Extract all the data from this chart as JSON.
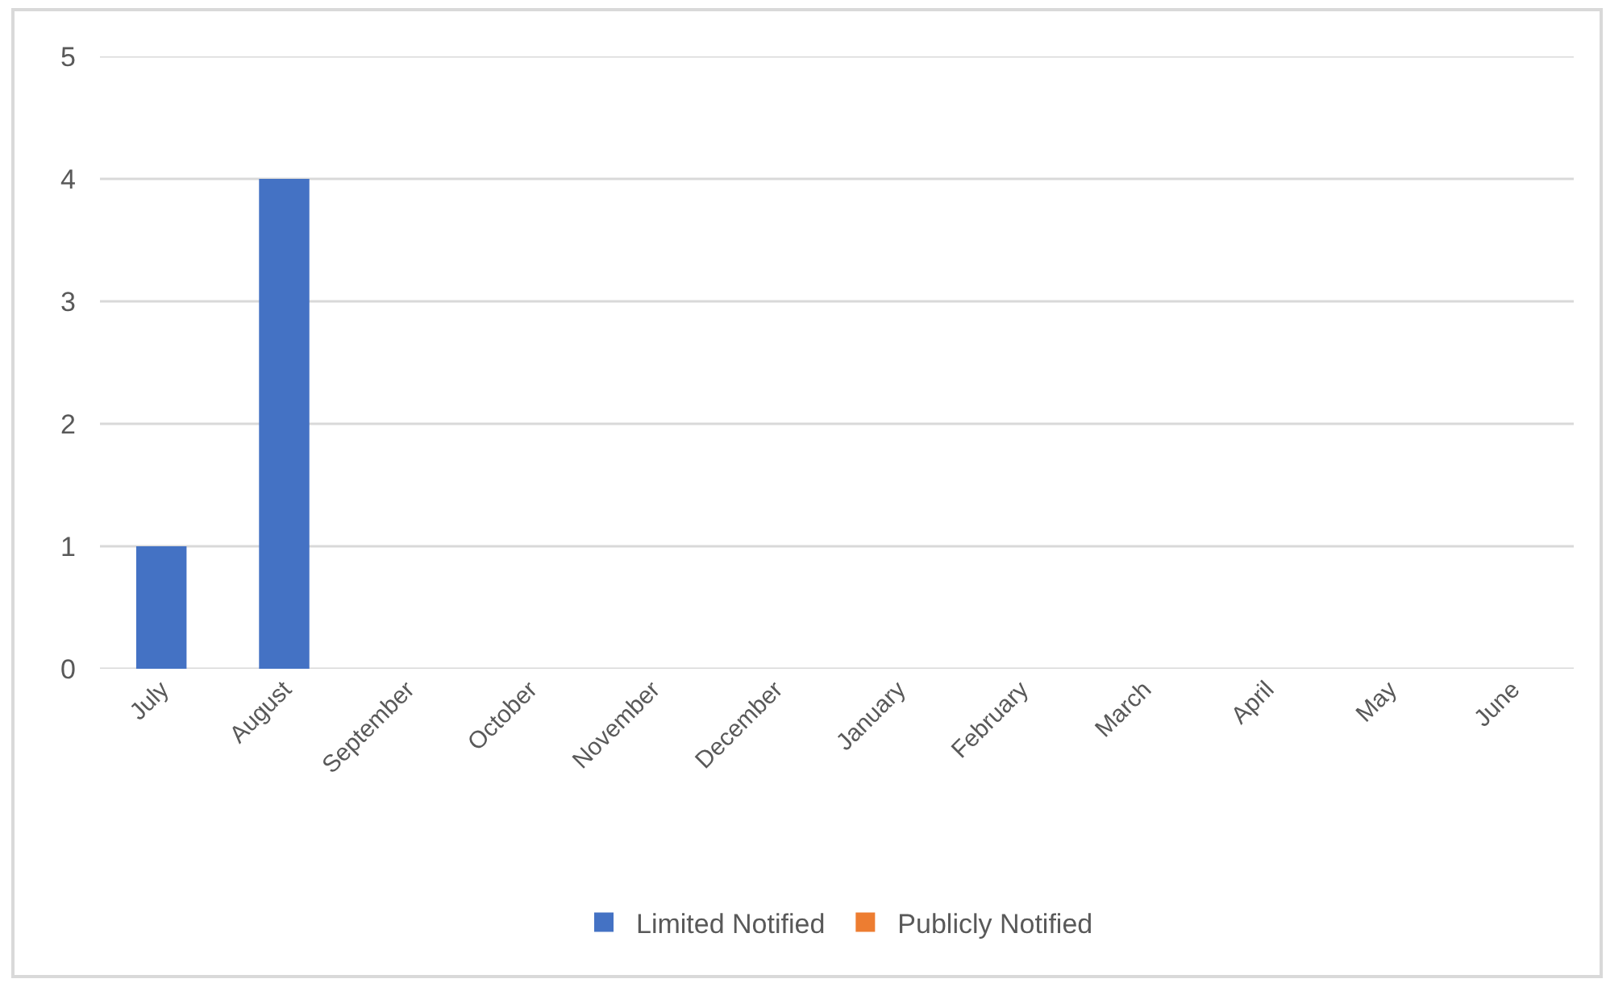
{
  "chart_data": {
    "type": "bar",
    "categories": [
      "July",
      "August",
      "September",
      "October",
      "November",
      "December",
      "January",
      "February",
      "March",
      "April",
      "May",
      "June"
    ],
    "series": [
      {
        "name": "Limited Notified",
        "color": "#4472c4",
        "values": [
          1,
          4,
          0,
          0,
          0,
          0,
          0,
          0,
          0,
          0,
          0,
          0
        ]
      },
      {
        "name": "Publicly Notified",
        "color": "#ed7d31",
        "values": [
          0,
          0,
          0,
          0,
          0,
          0,
          0,
          0,
          0,
          0,
          0,
          0
        ]
      }
    ],
    "ylim": [
      0,
      5
    ],
    "yticks": [
      0,
      1,
      2,
      3,
      4,
      5
    ],
    "grid": "y",
    "legend": "bottom"
  }
}
